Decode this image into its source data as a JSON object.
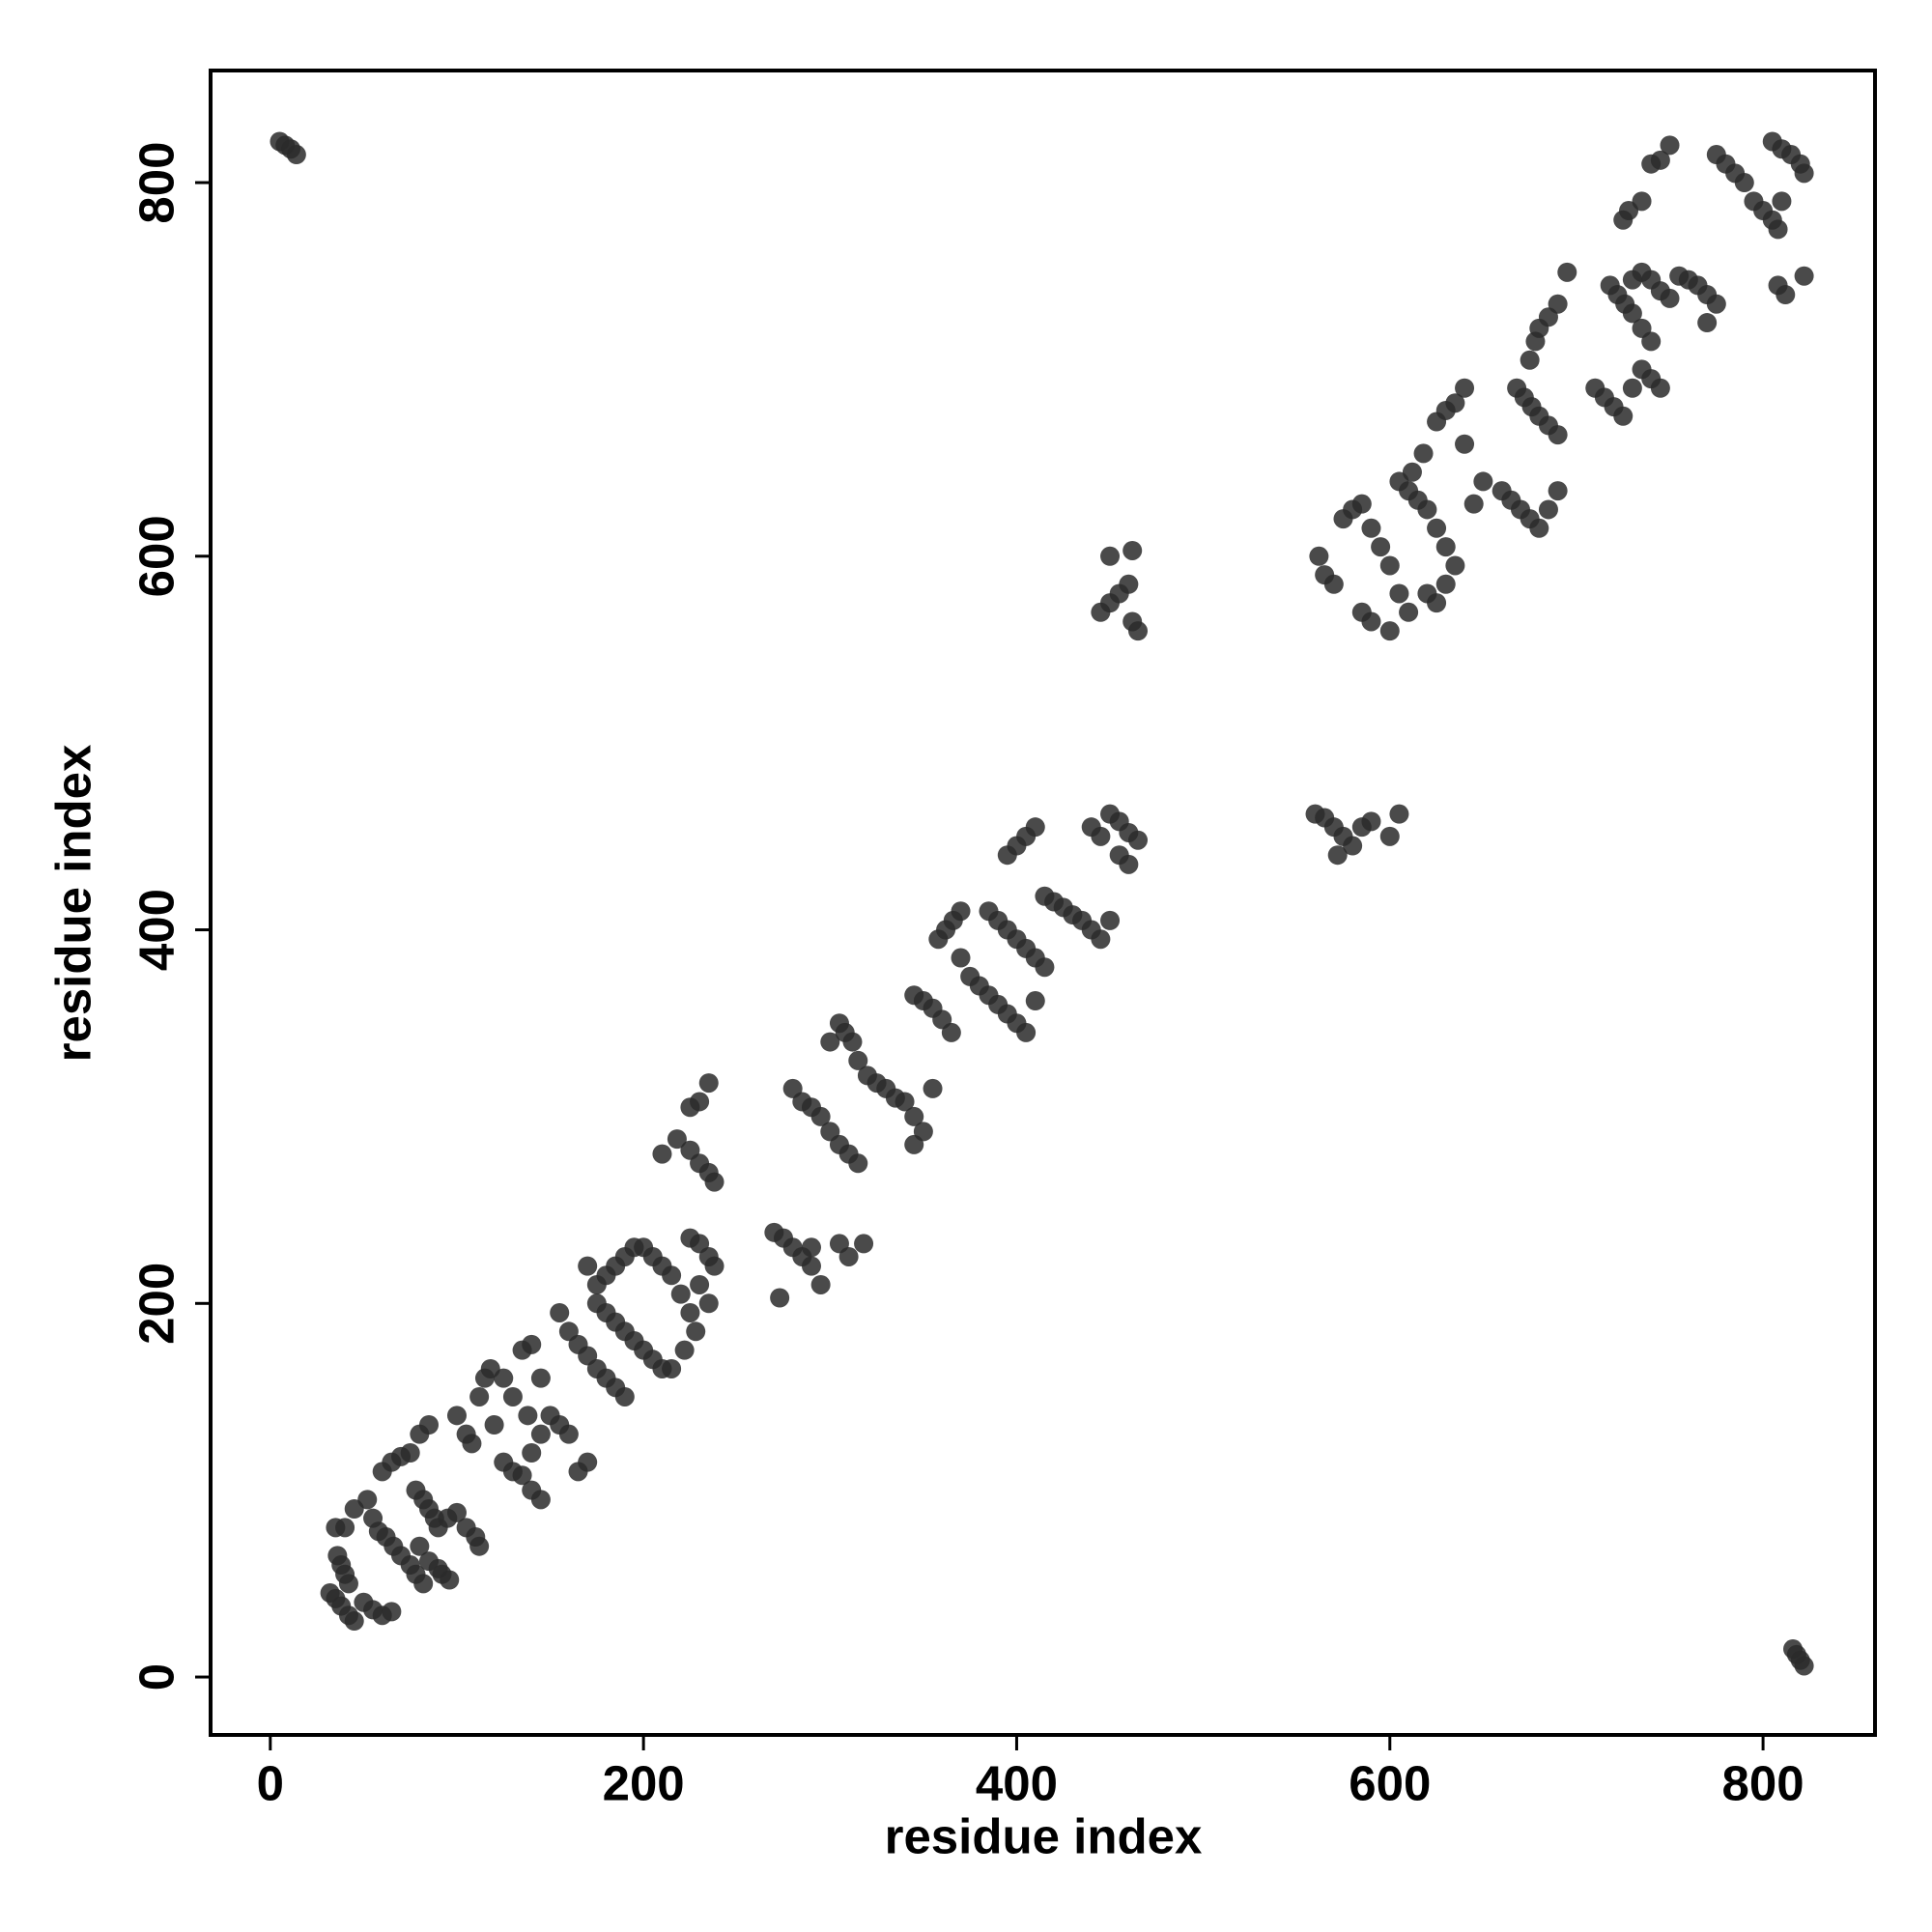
{
  "chart_data": {
    "type": "scatter",
    "xlabel": "residue index",
    "ylabel": "residue index",
    "xlim": [
      -32,
      860
    ],
    "ylim": [
      -31,
      860
    ],
    "xticks": [
      0,
      200,
      400,
      600,
      800
    ],
    "yticks": [
      0,
      200,
      400,
      600,
      800
    ],
    "color": "#2a2a2a",
    "x": [
      5,
      8,
      11,
      14,
      816,
      818,
      820,
      822,
      32,
      35,
      38,
      42,
      45,
      50,
      55,
      60,
      65,
      36,
      38,
      40,
      42,
      35,
      40,
      45,
      52,
      55,
      58,
      62,
      66,
      70,
      75,
      78,
      82,
      60,
      65,
      70,
      75,
      80,
      85,
      78,
      82,
      85,
      88,
      90,
      95,
      100,
      105,
      110,
      112,
      80,
      85,
      90,
      92,
      96,
      100,
      105,
      108,
      112,
      115,
      118,
      120,
      125,
      130,
      135,
      140,
      145,
      140,
      145,
      138,
      130,
      125,
      135,
      140,
      145,
      150,
      155,
      160,
      155,
      160,
      165,
      170,
      175,
      180,
      185,
      190,
      165,
      170,
      175,
      180,
      185,
      190,
      195,
      170,
      175,
      180,
      185,
      190,
      195,
      200,
      205,
      210,
      200,
      205,
      210,
      215,
      220,
      225,
      225,
      230,
      235,
      238,
      230,
      235,
      228,
      222,
      215,
      210,
      218,
      225,
      230,
      235,
      238,
      225,
      230,
      235,
      270,
      275,
      280,
      285,
      290,
      295,
      290,
      305,
      310,
      318,
      273,
      280,
      285,
      290,
      295,
      300,
      305,
      310,
      315,
      300,
      305,
      308,
      312,
      315,
      320,
      325,
      330,
      335,
      340,
      345,
      350,
      345,
      355,
      345,
      350,
      355,
      360,
      365,
      358,
      362,
      366,
      370,
      370,
      375,
      380,
      385,
      390,
      395,
      400,
      405,
      410,
      385,
      390,
      395,
      400,
      405,
      410,
      415,
      395,
      400,
      405,
      410,
      415,
      420,
      425,
      430,
      435,
      440,
      445,
      450,
      440,
      445,
      450,
      455,
      460,
      465,
      455,
      460,
      445,
      450,
      455,
      460,
      462,
      465,
      450,
      462,
      560,
      565,
      570,
      575,
      580,
      572,
      585,
      590,
      600,
      605,
      562,
      565,
      570,
      575,
      580,
      585,
      590,
      595,
      600,
      605,
      610,
      585,
      590,
      600,
      605,
      610,
      615,
      620,
      625,
      630,
      620,
      625,
      630,
      635,
      612,
      618,
      625,
      630,
      635,
      640,
      640,
      645,
      650,
      660,
      665,
      670,
      675,
      680,
      685,
      690,
      668,
      672,
      676,
      680,
      685,
      690,
      675,
      678,
      680,
      685,
      690,
      695,
      710,
      715,
      720,
      725,
      730,
      735,
      740,
      745,
      718,
      722,
      726,
      730,
      735,
      740,
      725,
      728,
      735,
      740,
      745,
      750,
      730,
      735,
      740,
      745,
      750,
      755,
      760,
      765,
      770,
      775,
      770,
      775,
      780,
      785,
      790,
      795,
      800,
      805,
      808,
      810,
      805,
      810,
      815,
      820,
      822,
      808,
      812,
      822
    ],
    "values": [
      822,
      820,
      818,
      815,
      15,
      12,
      9,
      6,
      45,
      42,
      38,
      33,
      30,
      40,
      36,
      33,
      35,
      65,
      60,
      55,
      50,
      80,
      80,
      90,
      95,
      85,
      78,
      75,
      70,
      65,
      60,
      55,
      50,
      110,
      115,
      118,
      120,
      130,
      135,
      100,
      95,
      90,
      85,
      80,
      85,
      88,
      80,
      75,
      70,
      70,
      62,
      58,
      55,
      52,
      140,
      130,
      125,
      150,
      160,
      165,
      135,
      115,
      110,
      108,
      100,
      95,
      120,
      130,
      140,
      150,
      160,
      175,
      178,
      160,
      140,
      135,
      130,
      195,
      185,
      178,
      172,
      165,
      160,
      155,
      150,
      110,
      115,
      210,
      215,
      220,
      225,
      230,
      220,
      200,
      195,
      190,
      185,
      180,
      175,
      170,
      165,
      230,
      225,
      220,
      215,
      205,
      195,
      235,
      232,
      225,
      220,
      210,
      200,
      185,
      175,
      165,
      280,
      288,
      282,
      275,
      270,
      265,
      305,
      308,
      318,
      238,
      235,
      230,
      225,
      220,
      210,
      230,
      232,
      225,
      232,
      203,
      315,
      308,
      305,
      300,
      292,
      285,
      280,
      275,
      340,
      350,
      345,
      340,
      330,
      322,
      318,
      315,
      310,
      308,
      300,
      292,
      285,
      315,
      365,
      362,
      358,
      352,
      345,
      395,
      400,
      405,
      410,
      385,
      375,
      370,
      365,
      360,
      355,
      350,
      345,
      362,
      410,
      405,
      400,
      395,
      390,
      385,
      380,
      440,
      445,
      450,
      455,
      418,
      415,
      412,
      408,
      405,
      400,
      395,
      405,
      455,
      450,
      462,
      458,
      452,
      448,
      440,
      435,
      570,
      575,
      580,
      585,
      565,
      560,
      600,
      603,
      462,
      460,
      455,
      450,
      445,
      440,
      455,
      458,
      450,
      462,
      600,
      590,
      585,
      620,
      625,
      628,
      615,
      605,
      595,
      580,
      570,
      570,
      565,
      560,
      640,
      635,
      630,
      625,
      615,
      605,
      580,
      575,
      585,
      595,
      645,
      655,
      672,
      678,
      682,
      690,
      660,
      628,
      640,
      635,
      630,
      625,
      620,
      615,
      625,
      635,
      690,
      685,
      680,
      675,
      670,
      665,
      705,
      715,
      722,
      728,
      735,
      752,
      690,
      685,
      680,
      675,
      690,
      700,
      695,
      690,
      745,
      740,
      735,
      730,
      722,
      715,
      780,
      785,
      790,
      810,
      812,
      820,
      748,
      752,
      748,
      742,
      738,
      750,
      748,
      745,
      740,
      735,
      725,
      815,
      810,
      805,
      800,
      790,
      785,
      780,
      775,
      790,
      822,
      818,
      815,
      810,
      805,
      745,
      740,
      750
    ]
  }
}
